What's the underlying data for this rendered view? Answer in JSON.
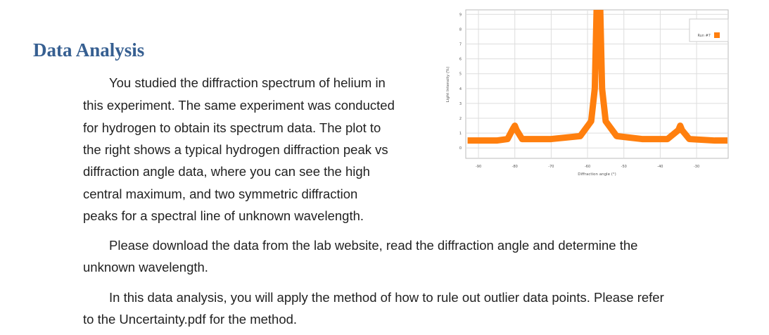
{
  "heading": "Data Analysis",
  "paragraphs": [
    {
      "lines": [
        "You studied the diffraction spectrum of helium in",
        "this experiment. The same experiment was conducted",
        "for hydrogen to obtain its spectrum data. The plot to",
        "the right shows a typical hydrogen diffraction peak vs",
        "diffraction angle data, where you can see the high",
        "central maximum, and two symmetric diffraction",
        "peaks for a spectral line of unknown wavelength."
      ]
    },
    {
      "lines": [
        "Please download the data from the lab website, read the diffraction angle and determine the",
        "unknown wavelength."
      ]
    },
    {
      "lines": [
        "In this data analysis, you will apply the method of how to rule out outlier data points. Please refer",
        "to the Uncertainty.pdf for the method."
      ]
    }
  ],
  "chart_data": {
    "type": "line",
    "x_label": "Diffraction angle (°)",
    "y_label": "Light Intensity (%)",
    "x": [
      -93,
      -85,
      -82,
      -80.5,
      -80,
      -79.5,
      -78,
      -70,
      -62,
      -59,
      -58,
      -57.5,
      -57,
      -56.5,
      -56,
      -55,
      -52,
      -45,
      -38,
      -35,
      -34.5,
      -34,
      -32,
      -25,
      -21.5
    ],
    "series": [
      {
        "name": "Run #7",
        "color": "#ff7f0e",
        "values": [
          0.5,
          0.5,
          0.6,
          1.3,
          1.5,
          1.2,
          0.6,
          0.6,
          0.8,
          1.8,
          4,
          9.3,
          9.3,
          9.3,
          4,
          1.8,
          0.8,
          0.6,
          0.6,
          1.2,
          1.5,
          1.2,
          0.6,
          0.5,
          0.5
        ]
      }
    ],
    "xlim": [
      -93.5,
      -21.3
    ],
    "ylim": [
      -0.7,
      9.3
    ],
    "xticks": [
      -90,
      -80,
      -70,
      -60,
      -50,
      -40,
      -30
    ],
    "yticks": [
      0,
      1,
      2,
      3,
      4,
      5,
      6,
      7,
      8,
      9
    ],
    "grid": true
  }
}
